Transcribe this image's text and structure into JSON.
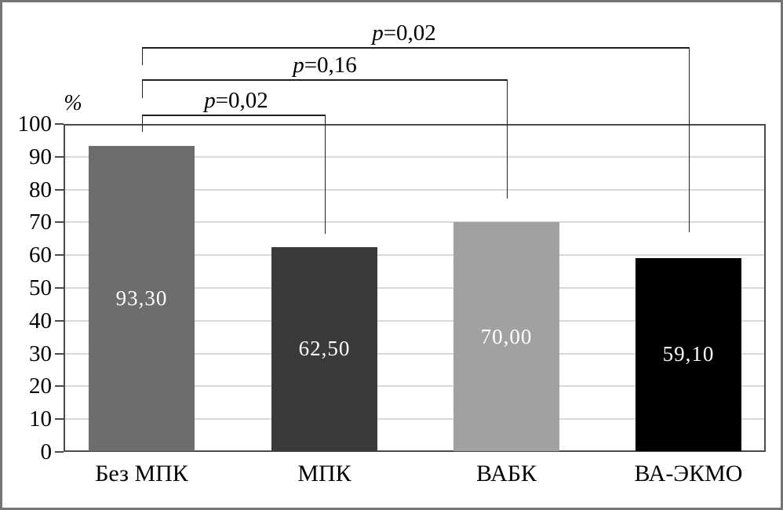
{
  "figure": {
    "border_color": "#757575",
    "background": "#FFFFFF"
  },
  "chart_data": {
    "type": "bar",
    "title": "",
    "xlabel": "",
    "ylabel": "%",
    "ylim": [
      0,
      100
    ],
    "ytick_step": 10,
    "ytick_labels": [
      "0",
      "10",
      "20",
      "30",
      "40",
      "50",
      "60",
      "70",
      "80",
      "90",
      "100"
    ],
    "grid": "horizontal",
    "legend": "none",
    "categories": [
      "Без МПК",
      "МПК",
      "ВАБК",
      "ВА-ЭКМО"
    ],
    "values": [
      93.3,
      62.5,
      70.0,
      59.1
    ],
    "value_labels": [
      "93,30",
      "62,50",
      "70,00",
      "59,10"
    ],
    "bar_colors": [
      "#6E6D6D",
      "#3A3A3A",
      "#A1A1A1",
      "#000000"
    ],
    "value_label_color": "#FFFFFF",
    "gridline_color": "#D9D9D9",
    "frame_color": "#4A4A4A",
    "bracket_line_color": "#1F1F1F",
    "annotations": [
      {
        "label": "p=0,02",
        "from": "Без МПК",
        "to": "ВА-ЭКМО",
        "from_index": 0,
        "to_index": 3
      },
      {
        "label": "p=0,16",
        "from": "Без МПК",
        "to": "ВАБК",
        "from_index": 0,
        "to_index": 2
      },
      {
        "label": "p=0,02",
        "from": "Без МПК",
        "to": "МПК",
        "from_index": 0,
        "to_index": 1
      }
    ]
  }
}
